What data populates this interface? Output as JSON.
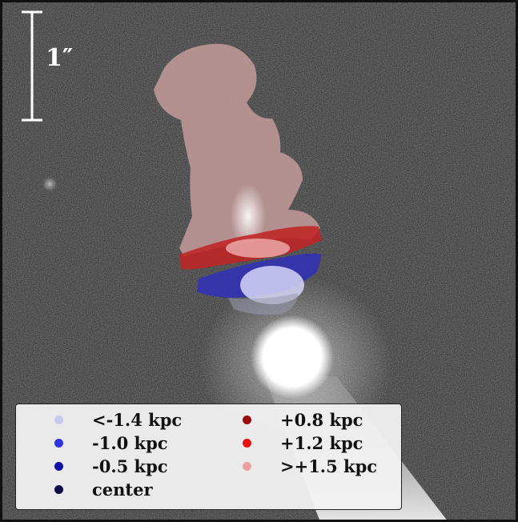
{
  "scale_bar": {
    "label": "1″"
  },
  "legend": {
    "items": [
      {
        "label": "<-1.4 kpc",
        "color": "#c9c9f2"
      },
      {
        "label": "-1.0 kpc",
        "color": "#3232e0"
      },
      {
        "label": "-0.5 kpc",
        "color": "#1010a0"
      },
      {
        "label": "center",
        "color": "#0c0c4a"
      },
      {
        "label": "+0.8 kpc",
        "color": "#9a0c0c"
      },
      {
        "label": "+1.2 kpc",
        "color": "#e81212"
      },
      {
        "label": ">+1.5 kpc",
        "color": "#eaa0a0"
      }
    ]
  },
  "colors": {
    "background": "#2e2e2e",
    "frame": "#111111",
    "outer_region": "#c49b9b",
    "red_band": "#c02424",
    "blue_band": "#3030b8"
  }
}
